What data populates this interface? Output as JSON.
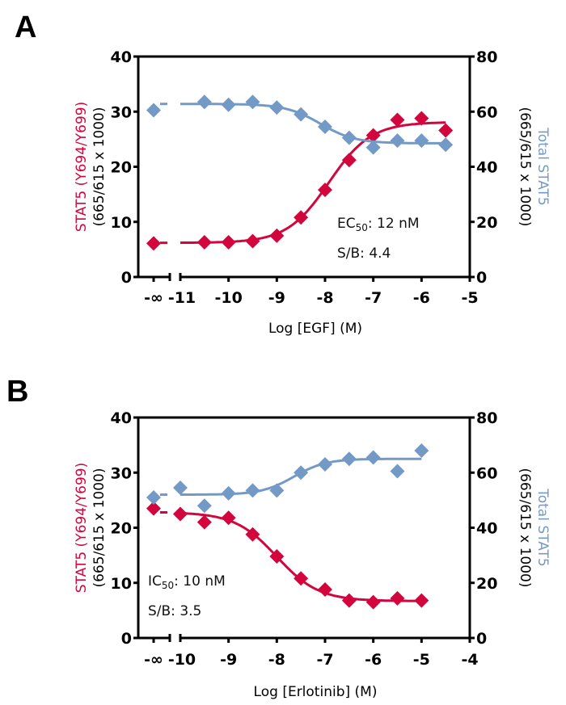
{
  "colors": {
    "red": "#d2063c",
    "blue": "#7399c6",
    "axis": "#000000"
  },
  "chart_data": [
    {
      "type": "scatter",
      "panel": "A",
      "title": "",
      "xlabel": "Log [EGF] (M)",
      "ylabel_left": {
        "part1": "STAT5 ",
        "part2": "(Y694/Y699)",
        "part3": "(665/615 x 1000)"
      },
      "ylabel_right": {
        "part1": "(665/615 x 1000)",
        "part2": "Total STAT5"
      },
      "xlim": [
        -11,
        -5
      ],
      "x_break_label": "-∞",
      "x_ticks": [
        -11,
        -10,
        -9,
        -8,
        -7,
        -6,
        -5
      ],
      "x_tick_labels": [
        "-11",
        "-10",
        "-9",
        "-8",
        "-7",
        "-6",
        "-5"
      ],
      "ylim_left": [
        0,
        40
      ],
      "y_ticks_left": [
        0,
        10,
        20,
        30,
        40
      ],
      "y_tick_labels_left": [
        "0",
        "10",
        "20",
        "30",
        "40"
      ],
      "ylim_right": [
        0,
        80
      ],
      "y_ticks_right": [
        0,
        20,
        40,
        60,
        80
      ],
      "y_tick_labels_right": [
        "0",
        "20",
        "40",
        "60",
        "80"
      ],
      "annotation": {
        "line1_prefix": "EC",
        "line1_sub": "50",
        "line1_suffix": ": 12 nM",
        "line2": "S/B: 4.4"
      },
      "grid": false,
      "series": [
        {
          "name": "STAT5 (Y694/Y699)",
          "axis": "left",
          "color": "#d2063c",
          "zero_dose_value": 6.1,
          "x": [
            -10.5,
            -10,
            -9.5,
            -9,
            -8.5,
            -8,
            -7.5,
            -7,
            -6.5,
            -6,
            -5.5
          ],
          "values": [
            6.3,
            6.3,
            6.5,
            7.5,
            10.8,
            15.8,
            21.2,
            25.7,
            28.5,
            28.8,
            26.6
          ],
          "fit": {
            "bottom": 6.2,
            "top": 28.1,
            "log_ec50": -7.92,
            "hill": 1.0
          }
        },
        {
          "name": "Total STAT5",
          "axis": "right",
          "color": "#7399c6",
          "zero_dose_value": 60.5,
          "x": [
            -10.5,
            -10,
            -9.5,
            -9,
            -8.5,
            -8,
            -7.5,
            -7,
            -6.5,
            -6,
            -5.5
          ],
          "values": [
            63.5,
            62.5,
            63.5,
            61.5,
            59.0,
            54.5,
            50.5,
            47.0,
            49.5,
            49.5,
            48.0
          ],
          "fit": {
            "bottom": 62.8,
            "top": 48.5,
            "log_ec50": -8.1,
            "hill": 1.2
          }
        }
      ]
    },
    {
      "type": "scatter",
      "panel": "B",
      "title": "",
      "xlabel": "Log [Erlotinib] (M)",
      "ylabel_left": {
        "part1": "STAT5 ",
        "part2": "(Y694/Y699)",
        "part3": "(665/615 x 1000)"
      },
      "ylabel_right": {
        "part1": "(665/615 x 1000)",
        "part2": "Total STAT5"
      },
      "xlim": [
        -10,
        -4
      ],
      "x_break_label": "-∞",
      "x_ticks": [
        -10,
        -9,
        -8,
        -7,
        -6,
        -5,
        -4
      ],
      "x_tick_labels": [
        "-10",
        "-9",
        "-8",
        "-7",
        "-6",
        "-5",
        "-4"
      ],
      "ylim_left": [
        0,
        40
      ],
      "y_ticks_left": [
        0,
        10,
        20,
        30,
        40
      ],
      "y_tick_labels_left": [
        "0",
        "10",
        "20",
        "30",
        "40"
      ],
      "ylim_right": [
        0,
        80
      ],
      "y_ticks_right": [
        0,
        20,
        40,
        60,
        80
      ],
      "y_tick_labels_right": [
        "0",
        "20",
        "40",
        "60",
        "80"
      ],
      "annotation": {
        "line1_prefix": "IC",
        "line1_sub": "50",
        "line1_suffix": ": 10 nM",
        "line2": "S/B: 3.5"
      },
      "grid": false,
      "series": [
        {
          "name": "STAT5 (Y694/Y699)",
          "axis": "left",
          "color": "#d2063c",
          "zero_dose_value": 23.5,
          "x": [
            -10,
            -9.5,
            -9,
            -8.5,
            -8,
            -7.5,
            -7,
            -6.5,
            -6,
            -5.5,
            -5
          ],
          "values": [
            22.5,
            21.0,
            21.8,
            18.8,
            14.8,
            10.8,
            8.8,
            6.8,
            6.5,
            7.2,
            6.8
          ],
          "fit": {
            "bottom": 22.8,
            "top": 6.7,
            "log_ec50": -8.0,
            "hill": 1.0
          }
        },
        {
          "name": "Total STAT5",
          "axis": "right",
          "color": "#7399c6",
          "zero_dose_value": 51.0,
          "x": [
            -10,
            -9.5,
            -9,
            -8.5,
            -8,
            -7.5,
            -7,
            -6.5,
            -6,
            -5.5,
            -5
          ],
          "values": [
            54.5,
            48.0,
            52.5,
            53.5,
            53.5,
            60.0,
            63.0,
            65.0,
            65.5,
            60.5,
            68.0
          ],
          "fit": {
            "bottom": 52.0,
            "top": 65.0,
            "log_ec50": -7.65,
            "hill": 1.3
          }
        }
      ]
    }
  ]
}
